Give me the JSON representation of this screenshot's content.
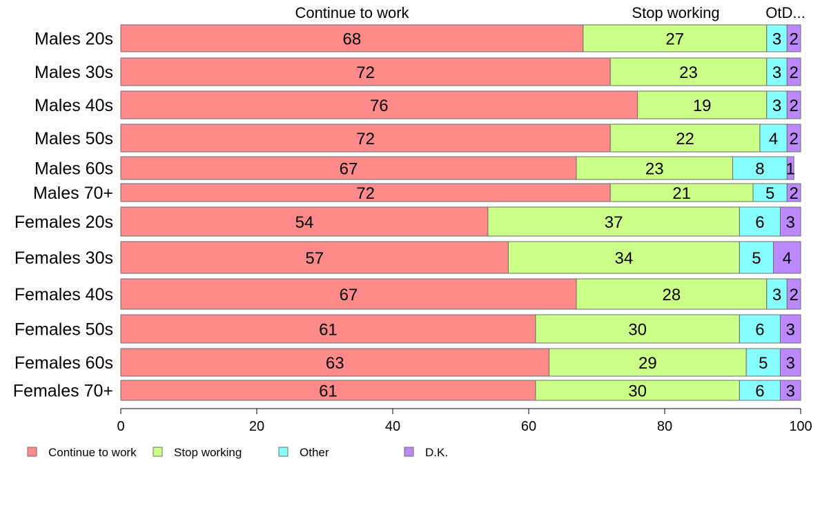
{
  "chart_data": {
    "type": "bar",
    "orientation": "horizontal",
    "stacked": true,
    "categories": [
      "Males 20s",
      "Males 30s",
      "Males 40s",
      "Males 50s",
      "Males 60s",
      "Males 70+",
      "Females 20s",
      "Females 30s",
      "Females 40s",
      "Females 50s",
      "Females 60s",
      "Females 70+"
    ],
    "series": [
      {
        "name": "Continue to work",
        "color": "#ff8a8a",
        "values": [
          68,
          72,
          76,
          72,
          67,
          72,
          54,
          57,
          67,
          61,
          63,
          61
        ]
      },
      {
        "name": "Stop working",
        "color": "#ccff88",
        "values": [
          27,
          23,
          19,
          22,
          23,
          21,
          37,
          34,
          28,
          30,
          29,
          30
        ]
      },
      {
        "name": "Other",
        "color": "#88ffff",
        "values": [
          3,
          3,
          3,
          4,
          8,
          5,
          6,
          5,
          3,
          6,
          5,
          6
        ]
      },
      {
        "name": "D.K.",
        "color": "#bb88ff",
        "values": [
          2,
          2,
          2,
          2,
          1,
          2,
          3,
          4,
          2,
          3,
          3,
          3
        ]
      }
    ],
    "top_labels": [
      "Continue to work",
      "Stop working",
      "OtD..."
    ],
    "xlim": [
      0,
      100
    ],
    "xticks": [
      "0",
      "20",
      "40",
      "60",
      "80",
      "100"
    ],
    "legend_position": "bottom-left",
    "grid": false
  }
}
